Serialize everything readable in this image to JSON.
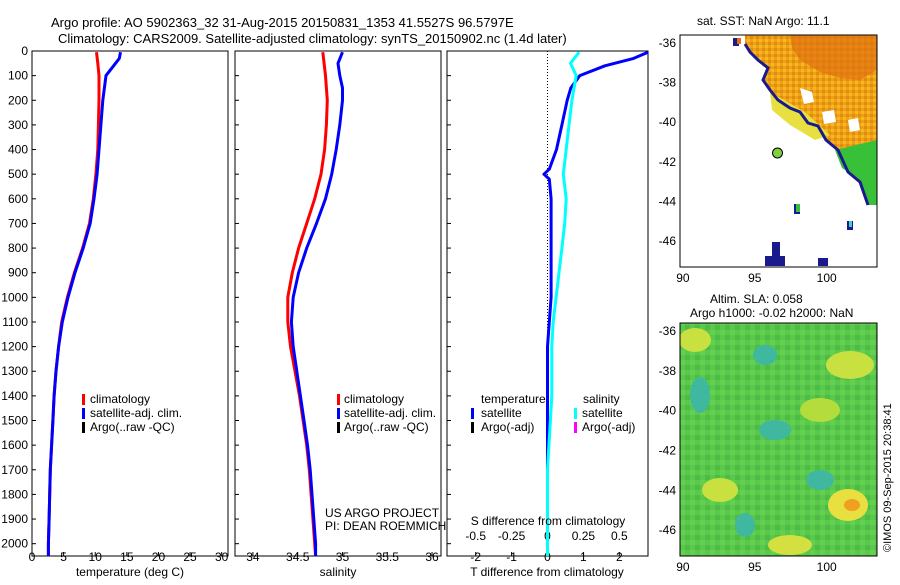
{
  "header": {
    "line1": "Argo profile: AO 5902363_32 31-Aug-2015 20150831_1353 41.5527S 96.5797E",
    "line2": "Climatology: CARS2009. Satellite-adjusted climatology: synTS_20150902.nc (1.4d later)"
  },
  "sst_map_title": "sat. SST: NaN Argo: 11.1",
  "sla_title1": "Altim. SLA: 0.058",
  "sla_title2": "Argo h1000: -0.02 h2000: NaN",
  "credit": "US ARGO PROJECT",
  "pi": "PI: DEAN ROEMMICH",
  "stamp": "©IMOS 09-Sep-2015 20:38:41",
  "colors": {
    "clim": "#ff0000",
    "sat": "#0000ff",
    "argo": "#000000",
    "sat_s": "#00ffff",
    "argo_s": "#ff00ff"
  },
  "legend_profile": [
    "climatology",
    "satellite-adj. clim.",
    "Argo(..raw -QC)"
  ],
  "legend_diff": {
    "temp_title": "temperature",
    "sal_title": "salinity",
    "temp_items": [
      "satellite",
      "Argo(-adj)"
    ],
    "sal_items": [
      "satellite",
      "Argo(-adj)"
    ]
  },
  "chart_data": [
    {
      "type": "line",
      "xlabel": "temperature (deg C)",
      "xlim": [
        0,
        31
      ],
      "ylim": [
        0,
        2050
      ],
      "xticks": [
        "0",
        "5",
        "10",
        "15",
        "20",
        "25",
        "30"
      ],
      "yticks": [
        "0",
        "100",
        "200",
        "300",
        "400",
        "500",
        "600",
        "700",
        "800",
        "900",
        "1000",
        "1100",
        "1200",
        "1300",
        "1400",
        "1500",
        "1600",
        "1700",
        "1800",
        "1900",
        "2000"
      ],
      "series": [
        {
          "name": "climatology",
          "color": "#ff0000",
          "depth": [
            5,
            50,
            100,
            200,
            300,
            400,
            500,
            600,
            700,
            800,
            900,
            1000,
            1100,
            1200,
            1300,
            1400,
            1500,
            1600,
            1700,
            1800,
            1900,
            2000,
            2050
          ],
          "values": [
            10.2,
            10.4,
            10.6,
            10.6,
            10.5,
            10.4,
            10.1,
            9.7,
            9.1,
            8.0,
            6.7,
            5.6,
            4.7,
            4.2,
            3.8,
            3.5,
            3.3,
            3.1,
            2.9,
            2.8,
            2.7,
            2.6,
            2.6
          ]
        },
        {
          "name": "satellite-adj. clim.",
          "color": "#0000ff",
          "depth": [
            5,
            30,
            60,
            100,
            200,
            300,
            400,
            500,
            600,
            700,
            800,
            900,
            1000,
            1100,
            1200,
            1300,
            1400,
            1500,
            1600,
            1700,
            1800,
            1900,
            2000,
            2050
          ],
          "values": [
            14.0,
            13.8,
            12.9,
            11.7,
            11.2,
            10.9,
            10.6,
            10.3,
            9.8,
            9.2,
            8.1,
            6.8,
            5.7,
            4.8,
            4.2,
            3.8,
            3.5,
            3.3,
            3.1,
            2.9,
            2.8,
            2.7,
            2.6,
            2.6
          ]
        }
      ]
    },
    {
      "type": "line",
      "xlabel": "salinity",
      "xlim": [
        33.8,
        36.1
      ],
      "ylim": [
        0,
        2050
      ],
      "xticks": [
        "34",
        "34.5",
        "35",
        "35.5",
        "36"
      ],
      "series": [
        {
          "name": "climatology",
          "color": "#ff0000",
          "depth": [
            5,
            100,
            200,
            300,
            400,
            500,
            600,
            700,
            800,
            900,
            1000,
            1100,
            1200,
            1300,
            1400,
            1500,
            1600,
            1700,
            1800,
            1900,
            2000,
            2050
          ],
          "values": [
            34.78,
            34.81,
            34.83,
            34.82,
            34.8,
            34.76,
            34.69,
            34.6,
            34.51,
            34.44,
            34.39,
            34.39,
            34.42,
            34.47,
            34.52,
            34.56,
            34.6,
            34.63,
            34.65,
            34.67,
            34.69,
            34.7
          ]
        },
        {
          "name": "satellite-adj. clim.",
          "color": "#0000ff",
          "depth": [
            5,
            50,
            100,
            150,
            200,
            300,
            400,
            500,
            600,
            700,
            800,
            900,
            1000,
            1100,
            1200,
            1300,
            1400,
            1500,
            1600,
            1700,
            1800,
            1900,
            2000,
            2050
          ],
          "values": [
            35.0,
            34.95,
            34.97,
            35.0,
            35.0,
            34.97,
            34.93,
            34.88,
            34.81,
            34.71,
            34.6,
            34.51,
            34.45,
            34.43,
            34.45,
            34.49,
            34.53,
            34.57,
            34.61,
            34.64,
            34.66,
            34.68,
            34.7,
            34.7
          ]
        }
      ]
    },
    {
      "type": "line",
      "xlabel": "T difference from climatology",
      "top_label": "S difference from climatology",
      "xlim": [
        -2.8,
        2.8
      ],
      "s_xlim": [
        -0.7,
        0.7
      ],
      "ylim": [
        0,
        2050
      ],
      "xticks": [
        "-2",
        "-1",
        "0",
        "1",
        "2"
      ],
      "s_xticks": [
        "-0.5",
        "-0.25",
        "0",
        "0.25",
        "0.5"
      ],
      "series": [
        {
          "name": "temperature satellite",
          "color": "#0000ff",
          "units": "T",
          "depth": [
            5,
            30,
            60,
            100,
            150,
            200,
            300,
            400,
            480,
            500,
            520,
            600,
            700,
            800,
            900,
            1000,
            1100,
            1200,
            1300,
            1400,
            1500,
            1600,
            1700,
            1800,
            1900,
            2000,
            2050
          ],
          "values": [
            2.8,
            2.4,
            1.6,
            0.9,
            0.65,
            0.55,
            0.4,
            0.25,
            0.05,
            -0.1,
            0.05,
            0.1,
            0.1,
            0.1,
            0.1,
            0.1,
            0.05,
            0.0,
            0.0,
            0.0,
            0.0,
            0.0,
            0.0,
            0.0,
            0.0,
            0.0,
            0.0
          ]
        },
        {
          "name": "salinity satellite",
          "color": "#00ffff",
          "units": "S",
          "depth": [
            5,
            50,
            100,
            200,
            300,
            400,
            500,
            600,
            700,
            800,
            900,
            1000,
            1100,
            1200,
            1300,
            1400,
            1500,
            1600,
            1700,
            1800,
            1900,
            2000,
            2050
          ],
          "values": [
            0.22,
            0.16,
            0.2,
            0.17,
            0.15,
            0.13,
            0.11,
            0.13,
            0.12,
            0.1,
            0.08,
            0.06,
            0.04,
            0.03,
            0.03,
            0.03,
            0.02,
            0.01,
            0.0,
            0.0,
            0.0,
            0.0,
            0.0
          ]
        }
      ]
    },
    {
      "type": "heatmap",
      "title": "sat. SST: NaN Argo: 11.1",
      "xlim": [
        89.8,
        103.5
      ],
      "ylim": [
        -47.3,
        -35.6
      ],
      "xticks": [
        "90",
        "95",
        "100"
      ],
      "yticks": [
        "-36",
        "-38",
        "-40",
        "-42",
        "-44",
        "-46"
      ],
      "argo_marker": {
        "lon": 96.58,
        "lat": -41.55
      }
    },
    {
      "type": "heatmap",
      "title": "Altim. SLA: 0.058",
      "xlim": [
        89.8,
        103.5
      ],
      "ylim": [
        -47.3,
        -35.6
      ],
      "xticks": [
        "90",
        "95",
        "100"
      ],
      "yticks": [
        "-36",
        "-38",
        "-40",
        "-42",
        "-44",
        "-46"
      ]
    }
  ]
}
